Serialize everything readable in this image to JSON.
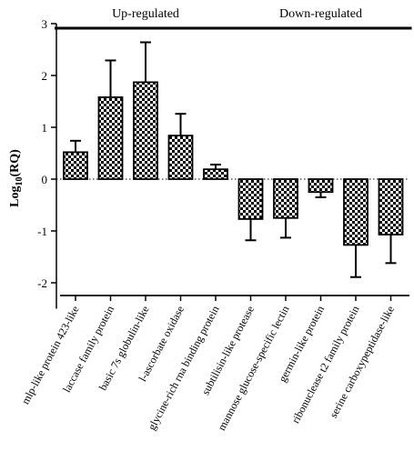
{
  "chart_data": {
    "type": "bar",
    "ylabel_base": "Log",
    "ylabel_sub": "10",
    "ylabel_rest": "(RQ)",
    "ylim": [
      -2.5,
      3
    ],
    "yticks": [
      "3",
      "2",
      "1",
      "0",
      "-1",
      "-2"
    ],
    "ytick_values": [
      3,
      2,
      1,
      0,
      -1,
      -2
    ],
    "groups": [
      {
        "label": "Up-regulated",
        "first": 0,
        "last": 4
      },
      {
        "label": "Down-regulated",
        "first": 5,
        "last": 9
      }
    ],
    "categories": [
      "mlp-like protein 423-like",
      "laccase family protein",
      "basic 7s globulin-like",
      "l-ascorbate oxidase",
      "glycine-rich rna binding protein",
      "subtilisin-like protease",
      "mannose glucose-specific lectin",
      "germin-like protein",
      "ribonuclease t2 family protein",
      "serine carboxypeptidase-like"
    ],
    "values": [
      0.52,
      1.58,
      1.87,
      0.84,
      0.19,
      -0.77,
      -0.75,
      -0.25,
      -1.27,
      -1.07
    ],
    "errors": [
      0.22,
      0.71,
      0.77,
      0.42,
      0.09,
      0.41,
      0.38,
      0.1,
      0.62,
      0.55
    ],
    "bar_pattern": "checkerboard",
    "colors": {
      "bar_fill_dark": "#000000",
      "bar_fill_light": "#ffffff",
      "axis": "#000000"
    }
  }
}
